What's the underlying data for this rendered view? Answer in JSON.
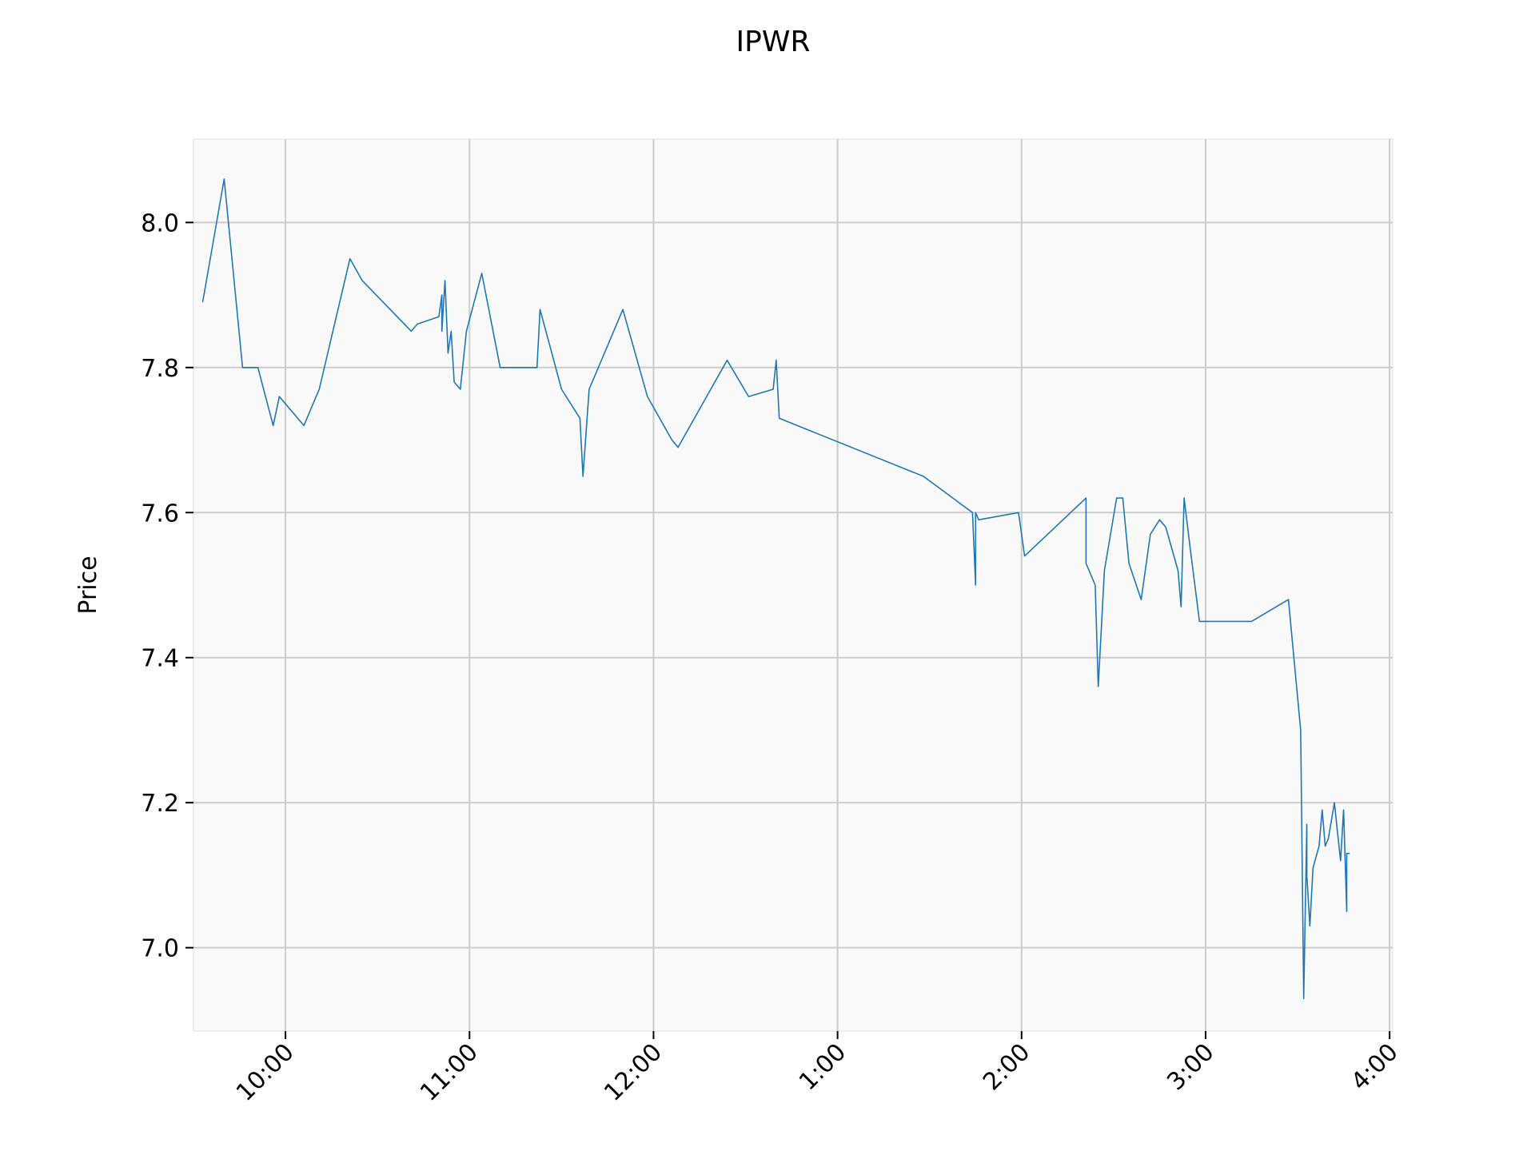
{
  "chart_data": {
    "type": "line",
    "title": "IPWR",
    "xlabel": "",
    "ylabel": "Price",
    "xlim": [
      "9:30",
      "16:01"
    ],
    "ylim": [
      6.885,
      8.115
    ],
    "x_ticks": [
      {
        "t": "10:00",
        "label": "10:00"
      },
      {
        "t": "11:00",
        "label": "11:00"
      },
      {
        "t": "12:00",
        "label": "12:00"
      },
      {
        "t": "13:00",
        "label": "1:00"
      },
      {
        "t": "14:00",
        "label": "2:00"
      },
      {
        "t": "15:00",
        "label": "3:00"
      },
      {
        "t": "16:00",
        "label": "4:00"
      }
    ],
    "y_ticks": [
      7.0,
      7.2,
      7.4,
      7.6,
      7.8,
      8.0
    ],
    "y_tick_labels": [
      "7.0",
      "7.2",
      "7.4",
      "7.6",
      "7.8",
      "8.0"
    ],
    "grid": true,
    "line_color": "#1f77b4",
    "plot_background": "#f9f9f9",
    "grid_color": "#cccccc",
    "series": [
      {
        "x": [
          "9:33",
          "9:40",
          "9:46",
          "9:51",
          "9:56",
          "9:58",
          "10:06",
          "10:11",
          "10:21",
          "10:25",
          "10:41",
          "10:43",
          "10:50",
          "10:51",
          "10:51",
          "10:52",
          "10:53",
          "10:54",
          "10:55",
          "10:57",
          "10:59",
          "11:04",
          "11:10",
          "11:22",
          "11:23",
          "11:30",
          "11:36",
          "11:37",
          "11:39",
          "11:50",
          "11:58",
          "12:06",
          "12:08",
          "12:24",
          "12:31",
          "12:39",
          "12:40",
          "12:41",
          "13:28",
          "13:44",
          "13:45",
          "13:45",
          "13:46",
          "13:59",
          "14:01",
          "14:21",
          "14:21",
          "14:24",
          "14:25",
          "14:27",
          "14:31",
          "14:33",
          "14:35",
          "14:39",
          "14:42",
          "14:45",
          "14:47",
          "14:51",
          "14:52",
          "14:53",
          "14:55",
          "14:58",
          "15:02",
          "15:15",
          "15:27",
          "15:31",
          "15:32",
          "15:33",
          "15:33",
          "15:34",
          "15:35",
          "15:37",
          "15:38",
          "15:39",
          "15:40",
          "15:42",
          "15:43",
          "15:44",
          "15:45",
          "15:46",
          "15:46",
          "15:47"
        ],
        "y": [
          7.89,
          8.06,
          7.8,
          7.8,
          7.72,
          7.76,
          7.72,
          7.77,
          7.95,
          7.92,
          7.85,
          7.86,
          7.87,
          7.9,
          7.85,
          7.92,
          7.82,
          7.85,
          7.78,
          7.77,
          7.85,
          7.93,
          7.8,
          7.8,
          7.88,
          7.77,
          7.73,
          7.65,
          7.77,
          7.88,
          7.76,
          7.7,
          7.69,
          7.81,
          7.76,
          7.77,
          7.81,
          7.73,
          7.65,
          7.6,
          7.5,
          7.6,
          7.59,
          7.6,
          7.54,
          7.62,
          7.53,
          7.5,
          7.36,
          7.52,
          7.62,
          7.62,
          7.53,
          7.48,
          7.57,
          7.59,
          7.58,
          7.52,
          7.47,
          7.62,
          7.55,
          7.45,
          7.45,
          7.45,
          7.48,
          7.3,
          6.93,
          7.17,
          7.1,
          7.03,
          7.11,
          7.14,
          7.19,
          7.14,
          7.15,
          7.2,
          7.16,
          7.12,
          7.19,
          7.05,
          7.13,
          7.13
        ]
      }
    ]
  }
}
